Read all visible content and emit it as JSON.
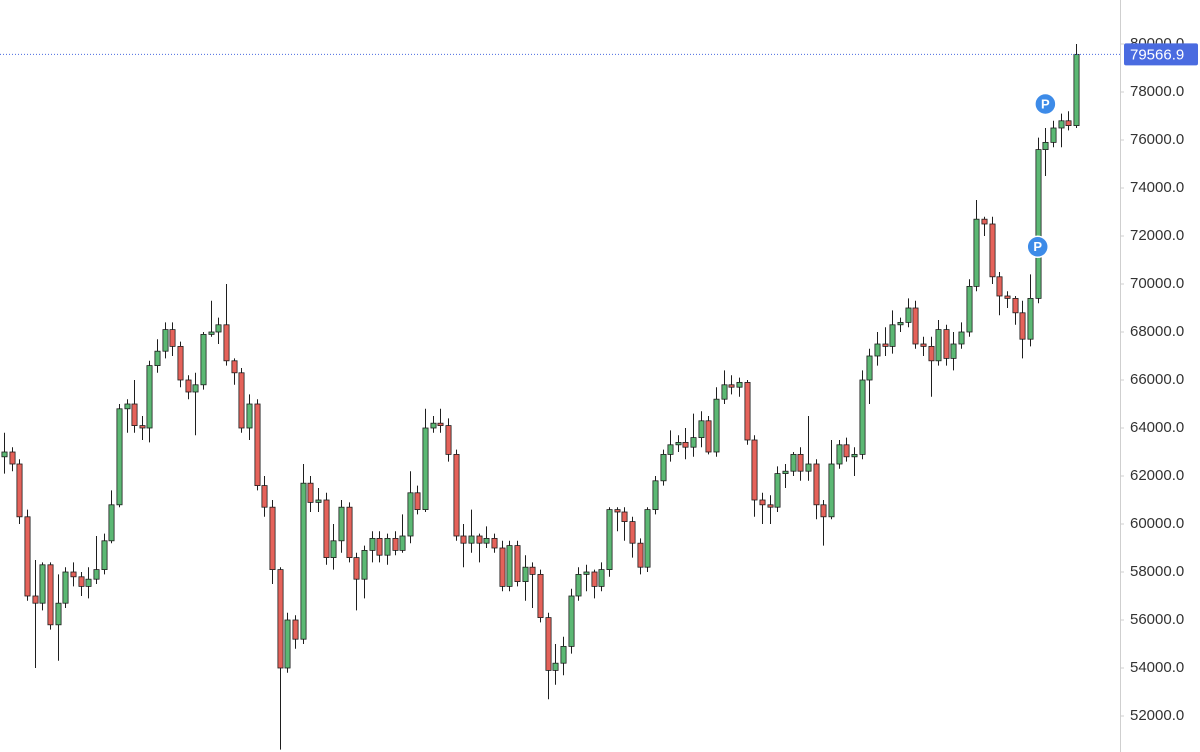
{
  "chart_data": {
    "type": "candlestick",
    "ylim": [
      50500,
      81833
    ],
    "yticks": [
      {
        "value": 52000,
        "label": "52000.0"
      },
      {
        "value": 54000,
        "label": "54000.0"
      },
      {
        "value": 56000,
        "label": "56000.0"
      },
      {
        "value": 58000,
        "label": "58000.0"
      },
      {
        "value": 60000,
        "label": "60000.0"
      },
      {
        "value": 62000,
        "label": "62000.0"
      },
      {
        "value": 64000,
        "label": "64000.0"
      },
      {
        "value": 66000,
        "label": "66000.0"
      },
      {
        "value": 68000,
        "label": "68000.0"
      },
      {
        "value": 70000,
        "label": "70000.0"
      },
      {
        "value": 72000,
        "label": "72000.0"
      },
      {
        "value": 74000,
        "label": "74000.0"
      },
      {
        "value": 76000,
        "label": "76000.0"
      },
      {
        "value": 78000,
        "label": "78000.0"
      },
      {
        "value": 80000,
        "label": "80000.0"
      }
    ],
    "grid": false,
    "up_color": "#5cb874",
    "down_color": "#e5625a",
    "outline_color": "#1e1e1e",
    "last_price": 79566.9,
    "last_price_color": "#4a6be0",
    "markers": [
      {
        "label": "P",
        "index": 135,
        "value": 71550,
        "color": "#3d8be8"
      },
      {
        "label": "P",
        "index": 136,
        "value": 77500,
        "color": "#3d8be8"
      }
    ],
    "open": [
      62800,
      63000,
      62500,
      60300,
      57000,
      56700,
      58300,
      55800,
      56700,
      58000,
      57800,
      57400,
      57700,
      58100,
      59300,
      60800,
      64800,
      65000,
      64100,
      64000,
      66600,
      67200,
      68100,
      67400,
      66000,
      65500,
      65800,
      67900,
      68000,
      68300,
      66800,
      66300,
      64000,
      65000,
      61600,
      60700,
      58100,
      54000,
      56000,
      55200,
      61700,
      60900,
      61000,
      58600,
      59300,
      60700,
      58600,
      57700,
      58900,
      59400,
      58700,
      59400,
      58900,
      59500,
      61300,
      60600,
      64000,
      64200,
      64100,
      62900,
      59500,
      59200,
      59500,
      59200,
      59400,
      59000,
      57400,
      59100,
      57600,
      58200,
      57900,
      56100,
      53900,
      54200,
      54900,
      57000,
      57900,
      58000,
      57400,
      58100,
      60600,
      60500,
      60100,
      59200,
      58200,
      60600,
      61800,
      62900,
      63300,
      63400,
      63200,
      63600,
      64300,
      63000,
      65200,
      65800,
      65700,
      65900,
      63500,
      61000,
      60800,
      60700,
      62100,
      62200,
      62900,
      62200,
      62500,
      60800,
      60300,
      62500,
      63300,
      62800,
      62900,
      66000,
      67000,
      67500,
      67400,
      68300,
      68400,
      69000,
      67500,
      67400,
      66800,
      68100,
      66900,
      67500,
      68000,
      69900,
      72700,
      72500,
      70300,
      69500,
      69400,
      68800,
      67700,
      69400,
      75600,
      75900,
      76500,
      76800,
      76600
    ],
    "high": [
      63800,
      63200,
      62700,
      60600,
      58500,
      58400,
      58400,
      57900,
      58200,
      58400,
      58000,
      58200,
      59500,
      59600,
      61400,
      65000,
      65200,
      66000,
      64500,
      66800,
      67700,
      68400,
      68400,
      67600,
      66200,
      66300,
      68000,
      69300,
      68600,
      70000,
      66900,
      66500,
      65400,
      65200,
      62000,
      61000,
      58200,
      56300,
      56200,
      62500,
      62000,
      61500,
      61300,
      60000,
      61000,
      60900,
      58800,
      59100,
      59700,
      59700,
      59600,
      59700,
      60400,
      62200,
      61600,
      64800,
      64500,
      64800,
      64400,
      63100,
      60000,
      60600,
      59600,
      59900,
      59600,
      59300,
      59300,
      59300,
      58700,
      58400,
      58100,
      56300,
      55000,
      55300,
      57300,
      58200,
      58300,
      58100,
      58400,
      60700,
      60700,
      60700,
      60300,
      59400,
      60700,
      62000,
      63100,
      63900,
      63700,
      64000,
      64600,
      64700,
      64500,
      65700,
      66400,
      66200,
      66100,
      66000,
      63700,
      61300,
      61200,
      62400,
      62500,
      63000,
      63200,
      64500,
      62700,
      61000,
      63500,
      63500,
      63600,
      63200,
      66400,
      67300,
      68000,
      68200,
      68900,
      68600,
      69400,
      69300,
      67800,
      67800,
      68500,
      68300,
      68000,
      68400,
      70200,
      73500,
      72800,
      72800,
      70500,
      69700,
      69500,
      69300,
      70400,
      76100,
      76500,
      76800,
      77100,
      77200,
      80000
    ],
    "low": [
      62100,
      62200,
      60000,
      56800,
      54000,
      56400,
      55600,
      54300,
      56500,
      57400,
      57000,
      56900,
      57500,
      57900,
      59200,
      60700,
      63800,
      63800,
      63500,
      63400,
      66300,
      66900,
      67000,
      65700,
      65200,
      63700,
      65600,
      67800,
      67500,
      66600,
      65800,
      63800,
      63500,
      61400,
      60300,
      57500,
      50600,
      53800,
      54800,
      55000,
      60500,
      60500,
      58300,
      58100,
      58800,
      58400,
      56400,
      56900,
      58400,
      58400,
      58300,
      58700,
      58800,
      59200,
      60400,
      60500,
      63800,
      63800,
      62600,
      59300,
      58200,
      58800,
      58400,
      59000,
      58800,
      57200,
      57200,
      57400,
      56800,
      56500,
      55900,
      52700,
      53300,
      53700,
      54600,
      56800,
      57200,
      56900,
      57200,
      57800,
      59700,
      59300,
      58600,
      57900,
      58000,
      60400,
      61600,
      62600,
      63000,
      62700,
      62800,
      63200,
      62900,
      62800,
      65000,
      65400,
      65300,
      63300,
      60300,
      60000,
      60000,
      60500,
      61500,
      62000,
      61800,
      61800,
      60200,
      59100,
      60200,
      62300,
      62600,
      62000,
      62700,
      65000,
      66600,
      67000,
      67100,
      68000,
      68200,
      67300,
      67000,
      65300,
      66600,
      66600,
      66400,
      67300,
      67800,
      69700,
      72000,
      70000,
      68700,
      69000,
      68300,
      66900,
      67400,
      69200,
      74500,
      75700,
      75700,
      76400,
      76500
    ],
    "close": [
      63000,
      62500,
      60300,
      57000,
      56700,
      58300,
      55800,
      56700,
      58000,
      57800,
      57400,
      57700,
      58100,
      59300,
      60800,
      64800,
      65000,
      64100,
      64000,
      66600,
      67200,
      68100,
      67400,
      66000,
      65500,
      65800,
      67900,
      68000,
      68300,
      66800,
      66300,
      64000,
      65000,
      61600,
      60700,
      58100,
      54000,
      56000,
      55200,
      61700,
      60900,
      61000,
      58600,
      59300,
      60700,
      58600,
      57700,
      58900,
      59400,
      58700,
      59400,
      58900,
      59500,
      61300,
      60600,
      64000,
      64200,
      64100,
      62900,
      59500,
      59200,
      59500,
      59200,
      59400,
      59000,
      57400,
      59100,
      57600,
      58200,
      57900,
      56100,
      53900,
      54200,
      54900,
      57000,
      57900,
      58000,
      57400,
      58100,
      60600,
      60500,
      60100,
      59200,
      58200,
      60600,
      61800,
      62900,
      63300,
      63400,
      63200,
      63600,
      64300,
      63000,
      65200,
      65800,
      65700,
      65900,
      63500,
      61000,
      60800,
      60700,
      62100,
      62200,
      62900,
      62200,
      62500,
      60800,
      60300,
      62500,
      63300,
      62800,
      62900,
      66000,
      67000,
      67500,
      67400,
      68300,
      68400,
      69000,
      67500,
      67400,
      66800,
      68100,
      66900,
      67500,
      68000,
      69900,
      72700,
      72500,
      70300,
      69500,
      69400,
      68800,
      67700,
      69400,
      75600,
      75900,
      76500,
      76800,
      76600,
      79566.9
    ]
  }
}
